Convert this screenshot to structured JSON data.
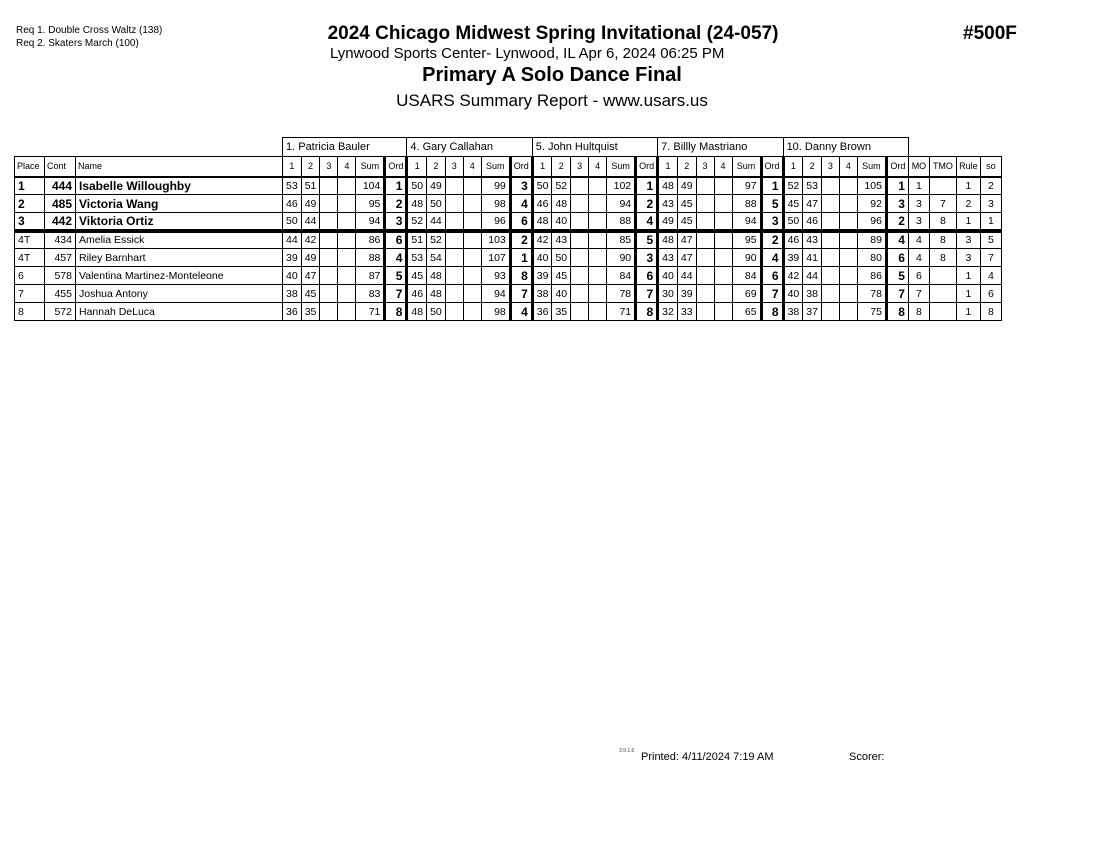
{
  "header": {
    "requirements": [
      "Req  1.  Double Cross Waltz (138)",
      "Req  2.  Skaters March (100)"
    ],
    "title": "2024 Chicago Midwest Spring Invitational (24-057)",
    "venue_date": "Lynwood Sports Center- Lynwood, IL  Apr 6, 2024  06:25 PM",
    "event": "Primary A Solo Dance Final",
    "report": "USARS Summary Report - www.usars.us",
    "event_number": "#500F"
  },
  "table": {
    "judges": [
      "1.  Patricia Bauler",
      "4.  Gary Callahan",
      "5.  John Hultquist",
      "7.  Billly Mastriano",
      "10.  Danny Brown"
    ],
    "columns": {
      "place": "Place",
      "cont": "Cont",
      "name": "Name",
      "sub": [
        "1",
        "2",
        "3",
        "4",
        "Sum",
        "Ord"
      ],
      "mo": "MO",
      "tmo": "TMO",
      "rule": "Rule",
      "so": "so"
    },
    "rows": [
      {
        "place": "1",
        "cont": "444",
        "name": "Isabelle Willoughby",
        "scores": [
          [
            "53",
            "51",
            "",
            "",
            "104",
            "1"
          ],
          [
            "50",
            "49",
            "",
            "",
            "99",
            "3"
          ],
          [
            "50",
            "52",
            "",
            "",
            "102",
            "1"
          ],
          [
            "48",
            "49",
            "",
            "",
            "97",
            "1"
          ],
          [
            "52",
            "53",
            "",
            "",
            "105",
            "1"
          ]
        ],
        "mo": "1",
        "tmo": "",
        "rule": "1",
        "so": "2"
      },
      {
        "place": "2",
        "cont": "485",
        "name": "Victoria Wang",
        "scores": [
          [
            "46",
            "49",
            "",
            "",
            "95",
            "2"
          ],
          [
            "48",
            "50",
            "",
            "",
            "98",
            "4"
          ],
          [
            "46",
            "48",
            "",
            "",
            "94",
            "2"
          ],
          [
            "43",
            "45",
            "",
            "",
            "88",
            "5"
          ],
          [
            "45",
            "47",
            "",
            "",
            "92",
            "3"
          ]
        ],
        "mo": "3",
        "tmo": "7",
        "rule": "2",
        "so": "3"
      },
      {
        "place": "3",
        "cont": "442",
        "name": "Viktoria Ortiz",
        "scores": [
          [
            "50",
            "44",
            "",
            "",
            "94",
            "3"
          ],
          [
            "52",
            "44",
            "",
            "",
            "96",
            "6"
          ],
          [
            "48",
            "40",
            "",
            "",
            "88",
            "4"
          ],
          [
            "49",
            "45",
            "",
            "",
            "94",
            "3"
          ],
          [
            "50",
            "46",
            "",
            "",
            "96",
            "2"
          ]
        ],
        "mo": "3",
        "tmo": "8",
        "rule": "1",
        "so": "1"
      },
      {
        "place": "4T",
        "cont": "434",
        "name": "Amelia Essick",
        "scores": [
          [
            "44",
            "42",
            "",
            "",
            "86",
            "6"
          ],
          [
            "51",
            "52",
            "",
            "",
            "103",
            "2"
          ],
          [
            "42",
            "43",
            "",
            "",
            "85",
            "5"
          ],
          [
            "48",
            "47",
            "",
            "",
            "95",
            "2"
          ],
          [
            "46",
            "43",
            "",
            "",
            "89",
            "4"
          ]
        ],
        "mo": "4",
        "tmo": "8",
        "rule": "3",
        "so": "5"
      },
      {
        "place": "4T",
        "cont": "457",
        "name": "Riley Barnhart",
        "scores": [
          [
            "39",
            "49",
            "",
            "",
            "88",
            "4"
          ],
          [
            "53",
            "54",
            "",
            "",
            "107",
            "1"
          ],
          [
            "40",
            "50",
            "",
            "",
            "90",
            "3"
          ],
          [
            "43",
            "47",
            "",
            "",
            "90",
            "4"
          ],
          [
            "39",
            "41",
            "",
            "",
            "80",
            "6"
          ]
        ],
        "mo": "4",
        "tmo": "8",
        "rule": "3",
        "so": "7"
      },
      {
        "place": "6",
        "cont": "578",
        "name": "Valentina Martinez-Monteleone",
        "scores": [
          [
            "40",
            "47",
            "",
            "",
            "87",
            "5"
          ],
          [
            "45",
            "48",
            "",
            "",
            "93",
            "8"
          ],
          [
            "39",
            "45",
            "",
            "",
            "84",
            "6"
          ],
          [
            "40",
            "44",
            "",
            "",
            "84",
            "6"
          ],
          [
            "42",
            "44",
            "",
            "",
            "86",
            "5"
          ]
        ],
        "mo": "6",
        "tmo": "",
        "rule": "1",
        "so": "4"
      },
      {
        "place": "7",
        "cont": "455",
        "name": "Joshua Antony",
        "scores": [
          [
            "38",
            "45",
            "",
            "",
            "83",
            "7"
          ],
          [
            "46",
            "48",
            "",
            "",
            "94",
            "7"
          ],
          [
            "38",
            "40",
            "",
            "",
            "78",
            "7"
          ],
          [
            "30",
            "39",
            "",
            "",
            "69",
            "7"
          ],
          [
            "40",
            "38",
            "",
            "",
            "78",
            "7"
          ]
        ],
        "mo": "7",
        "tmo": "",
        "rule": "1",
        "so": "6"
      },
      {
        "place": "8",
        "cont": "572",
        "name": "Hannah DeLuca",
        "scores": [
          [
            "36",
            "35",
            "",
            "",
            "71",
            "8"
          ],
          [
            "48",
            "50",
            "",
            "",
            "98",
            "4"
          ],
          [
            "36",
            "35",
            "",
            "",
            "71",
            "8"
          ],
          [
            "32",
            "33",
            "",
            "",
            "65",
            "8"
          ],
          [
            "38",
            "37",
            "",
            "",
            "75",
            "8"
          ]
        ],
        "mo": "8",
        "tmo": "",
        "rule": "1",
        "so": "8"
      }
    ]
  },
  "footer": {
    "version": "3.9.1.6",
    "printed": "Printed:  4/11/2024  7:19 AM",
    "scorer": "Scorer:"
  }
}
